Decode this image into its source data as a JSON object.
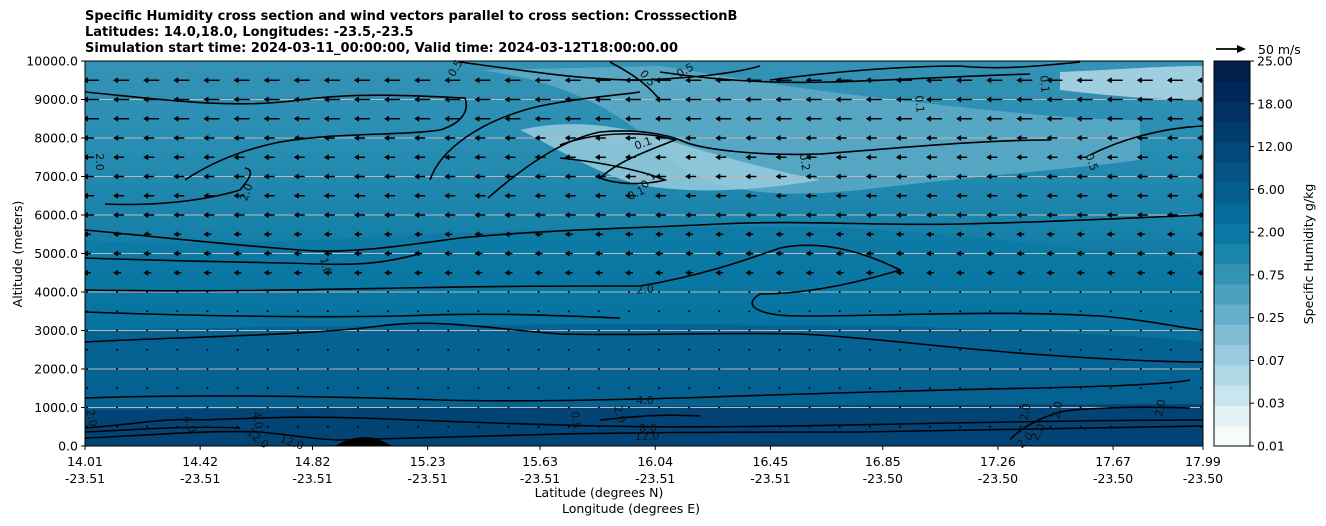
{
  "chart_data": {
    "type": "heatmap",
    "title_lines": [
      "Specific Humidity cross section and wind vectors parallel to cross section: CrosssectionB",
      "Latitudes: 14.0,18.0, Longitudes: -23.5,-23.5",
      "Simulation start time: 2024-03-11_00:00:00, Valid time: 2024-03-12T18:00:00.00"
    ],
    "ylabel": "Altitude (meters)",
    "xlabel_lines": [
      "Latitude (degrees N)",
      "Longitude (degrees E)"
    ],
    "ylim": [
      0,
      10000
    ],
    "y_ticks": [
      "0.0",
      "1000.0",
      "2000.0",
      "3000.0",
      "4000.0",
      "5000.0",
      "6000.0",
      "7000.0",
      "8000.0",
      "9000.0",
      "10000.0"
    ],
    "x_ticks": [
      {
        "lat": "14.01",
        "lon": "-23.51"
      },
      {
        "lat": "14.42",
        "lon": "-23.51"
      },
      {
        "lat": "14.82",
        "lon": "-23.51"
      },
      {
        "lat": "15.23",
        "lon": "-23.51"
      },
      {
        "lat": "15.63",
        "lon": "-23.51"
      },
      {
        "lat": "16.04",
        "lon": "-23.51"
      },
      {
        "lat": "16.45",
        "lon": "-23.51"
      },
      {
        "lat": "16.85",
        "lon": "-23.50"
      },
      {
        "lat": "17.26",
        "lon": "-23.50"
      },
      {
        "lat": "17.67",
        "lon": "-23.50"
      },
      {
        "lat": "17.99",
        "lon": "-23.50"
      }
    ],
    "grid": "horizontal",
    "colorbar": {
      "label": "Specific Humidity g/kg",
      "tick_labels": [
        "0.01",
        "0.03",
        "0.07",
        "0.25",
        "0.75",
        "2.00",
        "6.00",
        "12.00",
        "18.00",
        "25.00"
      ],
      "colors": [
        "#f7fbfc",
        "#e2f1f5",
        "#c9e5ee",
        "#b1d8e6",
        "#98cbdd",
        "#80bdd3",
        "#66afca",
        "#4da0bf",
        "#3492b5",
        "#1b84ab",
        "#0a78a4",
        "#056b9a",
        "#045f8f",
        "#045486",
        "#03487b",
        "#033d6f",
        "#023264",
        "#012758",
        "#011f4b"
      ]
    },
    "wind_key": {
      "label": "50 m/s"
    },
    "contour_labels": [
      {
        "text": "0.5",
        "rotate": -60
      },
      {
        "text": "0.5",
        "rotate": 50
      },
      {
        "text": "0.5",
        "rotate": -30
      },
      {
        "text": "0.1",
        "rotate": 85
      },
      {
        "text": "0.1",
        "rotate": 85
      },
      {
        "text": "0.1",
        "rotate": -20
      },
      {
        "text": "0.1",
        "rotate": -50
      },
      {
        "text": "0.1",
        "rotate": -25
      },
      {
        "text": "0.2",
        "rotate": 80
      },
      {
        "text": "0.5",
        "rotate": 70
      },
      {
        "text": "2.0",
        "rotate": 90
      },
      {
        "text": "2.0",
        "rotate": -70
      },
      {
        "text": "1.0",
        "rotate": 75
      },
      {
        "text": "2.0",
        "rotate": -5
      },
      {
        "text": "4.0",
        "rotate": 0
      },
      {
        "text": "2.0",
        "rotate": 80
      },
      {
        "text": "4.0",
        "rotate": 70
      },
      {
        "text": "4.0",
        "rotate": 80
      },
      {
        "text": "12.0",
        "rotate": 40
      },
      {
        "text": "12.0",
        "rotate": 20
      },
      {
        "text": "0.5",
        "rotate": 85
      },
      {
        "text": "2.0",
        "rotate": 75
      },
      {
        "text": "8.0",
        "rotate": 0
      },
      {
        "text": "12.0",
        "rotate": 0
      },
      {
        "text": "2.0",
        "rotate": -80
      },
      {
        "text": "2.0",
        "rotate": -80
      },
      {
        "text": "2.0",
        "rotate": -80
      },
      {
        "text": "2.0",
        "rotate": -60
      },
      {
        "text": "2.0",
        "rotate": -45
      }
    ]
  }
}
